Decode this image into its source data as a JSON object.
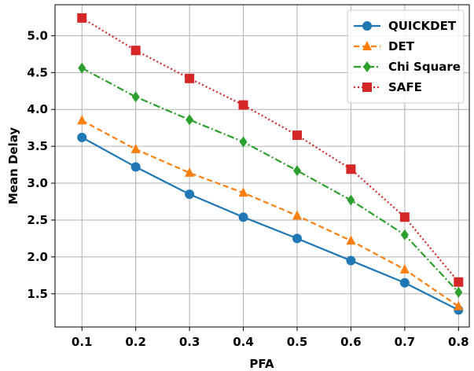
{
  "chart_data": {
    "type": "line",
    "title": "",
    "xlabel": "PFA",
    "ylabel": "Mean Delay",
    "x": [
      0.1,
      0.2,
      0.3,
      0.4,
      0.5,
      0.6,
      0.7,
      0.8
    ],
    "x_tick_labels": [
      "0.1",
      "0.2",
      "0.3",
      "0.4",
      "0.5",
      "0.6",
      "0.7",
      "0.8"
    ],
    "y_ticks": [
      1.5,
      2.0,
      2.5,
      3.0,
      3.5,
      4.0,
      4.5,
      5.0
    ],
    "y_tick_labels": [
      "1.5",
      "2.0",
      "2.5",
      "3.0",
      "3.5",
      "4.0",
      "4.5",
      "5.0"
    ],
    "xlim": [
      0.05,
      0.82
    ],
    "ylim": [
      1.05,
      5.42
    ],
    "grid": true,
    "legend_position": "top-right",
    "series": [
      {
        "name": "QUICKDET",
        "color": "#1f77b4",
        "marker": "circle",
        "dash": "solid",
        "values": [
          3.62,
          3.22,
          2.85,
          2.54,
          2.25,
          1.95,
          1.65,
          1.28
        ]
      },
      {
        "name": "DET",
        "color": "#ff7f0e",
        "marker": "triangle",
        "dash": "dashed",
        "values": [
          3.85,
          3.46,
          3.14,
          2.87,
          2.56,
          2.22,
          1.83,
          1.33
        ]
      },
      {
        "name": "Chi Square",
        "color": "#2ca02c",
        "marker": "diamond",
        "dash": "dashdot",
        "values": [
          4.56,
          4.17,
          3.86,
          3.56,
          3.17,
          2.77,
          2.3,
          1.52
        ]
      },
      {
        "name": "SAFE",
        "color": "#d62728",
        "marker": "square",
        "dash": "dotted",
        "values": [
          5.24,
          4.8,
          4.42,
          4.06,
          3.65,
          3.19,
          2.54,
          1.66
        ]
      }
    ]
  }
}
